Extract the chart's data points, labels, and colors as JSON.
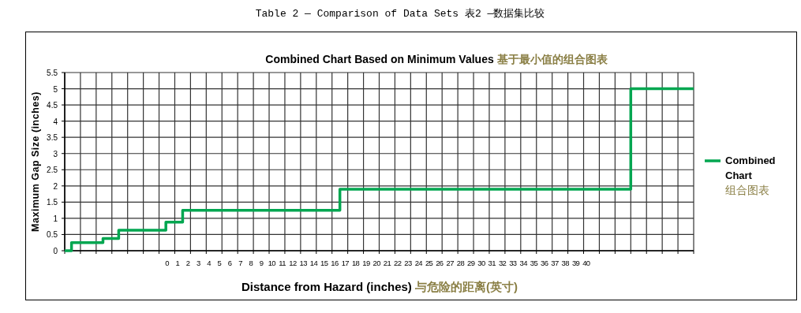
{
  "chart_data": {
    "type": "step",
    "title": "Table 2 — Comparison of Data Sets 表2 —数据集比较",
    "subtitle": "Combined Chart Based on Minimum Values 基于最小值的组合图表",
    "xlabel": "Distance from Hazard (inches) 与危险的距离(英寸)",
    "ylabel": "Maximum Gap Size (inches)",
    "x": [
      -9.75,
      -9.1,
      -6.1,
      -4.6,
      -0.1,
      1.5,
      16.5,
      44.25,
      50.25
    ],
    "series": [
      {
        "name": "Combined Chart 组合图表",
        "color": "#00a650",
        "values": [
          0,
          0.25,
          0.38,
          0.63,
          0.88,
          1.25,
          1.9,
          5,
          5
        ]
      }
    ],
    "xlim": [
      -9.75,
      50.25
    ],
    "xticks": [
      0,
      1,
      2,
      3,
      4,
      5,
      6,
      7,
      8,
      9,
      10,
      11,
      12,
      13,
      14,
      15,
      16,
      17,
      18,
      19,
      20,
      21,
      22,
      23,
      24,
      25,
      26,
      27,
      28,
      29,
      30,
      31,
      32,
      33,
      34,
      35,
      36,
      37,
      38,
      39,
      40,
      {
        "value": -9.75,
        "label": null
      },
      {
        "value": -8.25,
        "label": null
      },
      {
        "value": -6.75,
        "label": null
      },
      {
        "value": -5.25,
        "label": null
      },
      {
        "value": -3.75,
        "label": null
      },
      {
        "value": -2.25,
        "label": null
      },
      {
        "value": -0.75,
        "label": null
      },
      {
        "value": 0.75,
        "label": null
      },
      {
        "value": 2.25,
        "label": null
      },
      {
        "value": 3.75,
        "label": null
      },
      {
        "value": 5.25,
        "label": null
      },
      {
        "value": 6.75,
        "label": null
      },
      {
        "value": 8.25,
        "label": null
      },
      {
        "value": 9.75,
        "label": null
      },
      {
        "value": 11.25,
        "label": null
      },
      {
        "value": 12.75,
        "label": null
      },
      {
        "value": 14.25,
        "label": null
      },
      {
        "value": 15.75,
        "label": null
      },
      {
        "value": 17.25,
        "label": null
      },
      {
        "value": 18.75,
        "label": null
      },
      {
        "value": 20.25,
        "label": null
      },
      {
        "value": 21.75,
        "label": null
      },
      {
        "value": 23.25,
        "label": null
      },
      {
        "value": 24.75,
        "label": null
      },
      {
        "value": 26.25,
        "label": null
      },
      {
        "value": 27.75,
        "label": null
      },
      {
        "value": 29.25,
        "label": null
      },
      {
        "value": 30.75,
        "label": null
      },
      {
        "value": 32.25,
        "label": null
      },
      {
        "value": 33.75,
        "label": null
      },
      {
        "value": 35.25,
        "label": null
      },
      {
        "value": 36.75,
        "label": null
      },
      {
        "value": 38.25,
        "label": null
      },
      {
        "value": 39.75,
        "label": null
      },
      {
        "value": 41.25,
        "label": null
      },
      {
        "value": 42.75,
        "label": null
      },
      {
        "value": 44.25,
        "label": null
      },
      {
        "value": 45.75,
        "label": null
      },
      {
        "value": 47.25,
        "label": null
      },
      {
        "value": 48.75,
        "label": null
      },
      {
        "value": 50.25,
        "label": null
      }
    ],
    "ylim": [
      0,
      5.5
    ],
    "yticks": [
      0,
      0.5,
      1,
      1.5,
      2,
      2.5,
      3,
      3.5,
      4,
      4.5,
      5,
      5.5
    ],
    "grid": true,
    "legend": "right",
    "marker": "none",
    "line_style": "solid"
  }
}
